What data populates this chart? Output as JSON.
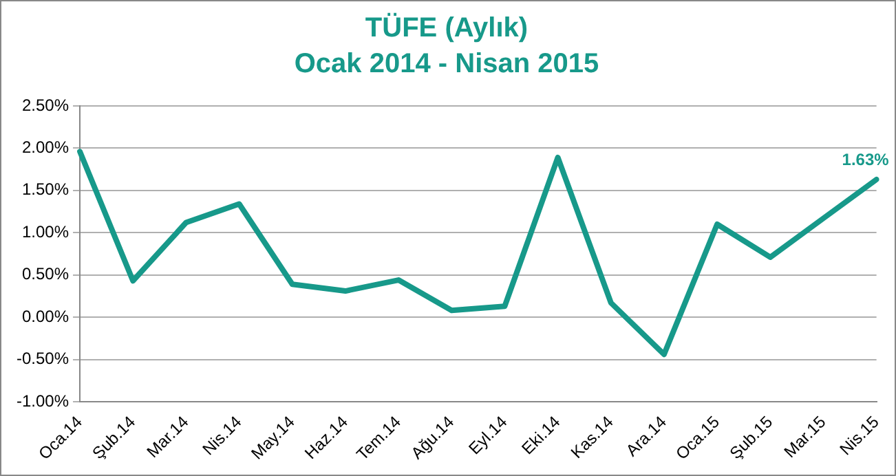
{
  "chart_data": {
    "type": "line",
    "title": "TÜFE (Aylık)",
    "subtitle": "Ocak 2014 - Nisan 2015",
    "categories": [
      "Oca.14",
      "Şub.14",
      "Mar.14",
      "Nis.14",
      "May.14",
      "Haz.14",
      "Tem.14",
      "Ağu.14",
      "Eyl.14",
      "Eki.14",
      "Kas.14",
      "Ara.14",
      "Oca.15",
      "Şub.15",
      "Mar.15",
      "Nis.15"
    ],
    "series": [
      {
        "color": "#17998a",
        "values": [
          1.96,
          0.43,
          1.12,
          1.34,
          0.39,
          0.31,
          0.44,
          0.08,
          0.13,
          1.89,
          0.17,
          -0.44,
          1.1,
          0.71,
          1.17,
          1.63
        ]
      }
    ],
    "ylim": [
      -1,
      2.5
    ],
    "yticks": [
      {
        "value": -1,
        "label": "-1.00%"
      },
      {
        "value": -0.5,
        "label": "-0.50%"
      },
      {
        "value": 0,
        "label": "0.00%"
      },
      {
        "value": 0.5,
        "label": "0.50%"
      },
      {
        "value": 1,
        "label": "1.00%"
      },
      {
        "value": 1.5,
        "label": "1.50%"
      },
      {
        "value": 2,
        "label": "2.00%"
      },
      {
        "value": 2.5,
        "label": "2.50%"
      }
    ],
    "annotations": [
      {
        "text": "1.63%",
        "x": "Nis.15",
        "y": 1.63
      }
    ],
    "grid": "y",
    "legend": false,
    "marker": "none",
    "line_style": "solid"
  }
}
